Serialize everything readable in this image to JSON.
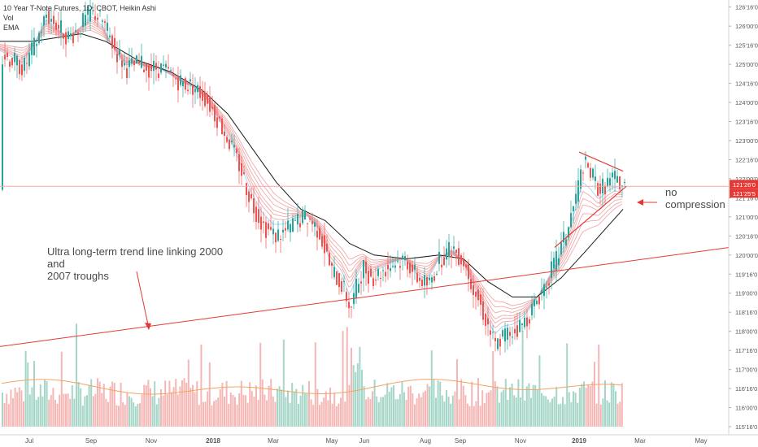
{
  "legend": {
    "title": "10 Year T-Note Futures, 1D, CBOT, Heikin Ashi",
    "vol": "Vol",
    "ema": "EMA"
  },
  "annotations": {
    "trend_line_1": "Ultra long-term trend line linking 2000 and",
    "trend_line_2": "2007 troughs",
    "no_comp_1": "no",
    "no_comp_2": "compression"
  },
  "colors": {
    "up": "#26a69a",
    "down": "#ef5350",
    "up_vol": "#a5d6c8",
    "down_vol": "#f5b7b5",
    "trend": "#e53935",
    "ema_slow": "#000000",
    "ribbon": "#ef9a9a",
    "ribbon_fast": "#90caf9",
    "price_line": "#f8a5a5",
    "price_badge": "#e53935",
    "vol_ma": "#f4a460"
  },
  "chart_data": {
    "type": "candlestick",
    "title": "10 Year T-Note Futures, 1D, CBOT, Heikin Ashi",
    "x_ticks": [
      "Jul",
      "Sep",
      "Nov",
      "2018",
      "Mar",
      "May",
      "Jun",
      "Aug",
      "Sep",
      "Nov",
      "2019",
      "Mar",
      "May"
    ],
    "y_ticks": [
      "126'16'0",
      "126'00'0",
      "125'16'0",
      "125'00'0",
      "124'16'0",
      "124'00'0",
      "123'16'0",
      "123'00'0",
      "122'16'0",
      "122'00'0",
      "121'16'0",
      "121'00'0",
      "120'16'0",
      "120'00'0",
      "119'16'0",
      "119'00'0",
      "118'16'0",
      "118'00'0",
      "117'16'0",
      "117'00'0",
      "116'16'0",
      "116'00'0",
      "115'16'0"
    ],
    "ylim": [
      115.5,
      126.6
    ],
    "last_price_labels": [
      "121'26'0",
      "121'25'5"
    ],
    "close_path": [
      [
        0,
        125.3
      ],
      [
        14,
        125.1
      ],
      [
        28,
        124.9
      ],
      [
        42,
        125.5
      ],
      [
        56,
        126.3
      ],
      [
        70,
        126.0
      ],
      [
        84,
        125.7
      ],
      [
        98,
        126.0
      ],
      [
        112,
        126.4
      ],
      [
        126,
        126.1
      ],
      [
        140,
        125.4
      ],
      [
        154,
        124.9
      ],
      [
        168,
        125.0
      ],
      [
        182,
        124.9
      ],
      [
        196,
        124.9
      ],
      [
        210,
        124.7
      ],
      [
        224,
        124.5
      ],
      [
        238,
        124.4
      ],
      [
        252,
        124.1
      ],
      [
        266,
        123.6
      ],
      [
        280,
        123.0
      ],
      [
        294,
        122.3
      ],
      [
        308,
        121.4
      ],
      [
        322,
        120.8
      ],
      [
        336,
        120.5
      ],
      [
        350,
        120.6
      ],
      [
        364,
        120.9
      ],
      [
        378,
        121.0
      ],
      [
        392,
        120.6
      ],
      [
        406,
        119.6
      ],
      [
        420,
        119.2
      ],
      [
        430,
        118.6
      ],
      [
        438,
        119.2
      ],
      [
        446,
        119.7
      ],
      [
        456,
        119.4
      ],
      [
        470,
        119.6
      ],
      [
        484,
        119.8
      ],
      [
        498,
        119.9
      ],
      [
        512,
        119.4
      ],
      [
        526,
        119.2
      ],
      [
        540,
        119.9
      ],
      [
        556,
        120.2
      ],
      [
        570,
        119.8
      ],
      [
        584,
        119.0
      ],
      [
        598,
        118.2
      ],
      [
        608,
        117.6
      ],
      [
        618,
        117.9
      ],
      [
        630,
        118.0
      ],
      [
        642,
        118.2
      ],
      [
        654,
        118.6
      ],
      [
        668,
        119.2
      ],
      [
        682,
        119.8
      ],
      [
        696,
        120.6
      ],
      [
        708,
        121.6
      ],
      [
        716,
        122.4
      ],
      [
        726,
        122.1
      ],
      [
        736,
        121.7
      ],
      [
        746,
        121.9
      ],
      [
        756,
        122.0
      ],
      [
        766,
        121.8
      ]
    ],
    "ema_slow": [
      [
        0,
        125.6
      ],
      [
        40,
        125.6
      ],
      [
        70,
        125.7
      ],
      [
        100,
        125.8
      ],
      [
        130,
        125.6
      ],
      [
        170,
        125.1
      ],
      [
        210,
        124.8
      ],
      [
        250,
        124.3
      ],
      [
        280,
        123.7
      ],
      [
        310,
        122.8
      ],
      [
        340,
        121.9
      ],
      [
        370,
        121.2
      ],
      [
        400,
        120.9
      ],
      [
        430,
        120.3
      ],
      [
        460,
        120.0
      ],
      [
        500,
        119.9
      ],
      [
        540,
        120.0
      ],
      [
        570,
        119.9
      ],
      [
        600,
        119.3
      ],
      [
        630,
        118.9
      ],
      [
        660,
        118.9
      ],
      [
        690,
        119.4
      ],
      [
        720,
        120.1
      ],
      [
        745,
        120.7
      ],
      [
        766,
        121.2
      ]
    ],
    "trend_line": [
      [
        0,
        117.6
      ],
      [
        932,
        120.3
      ]
    ],
    "triangle_upper": [
      [
        712,
        122.7
      ],
      [
        766,
        122.2
      ]
    ],
    "triangle_lower": [
      [
        682,
        120.2
      ],
      [
        770,
        121.8
      ]
    ],
    "volume_ma_level": 0.35,
    "series": [
      {
        "name": "Vol"
      },
      {
        "name": "EMA"
      }
    ]
  }
}
